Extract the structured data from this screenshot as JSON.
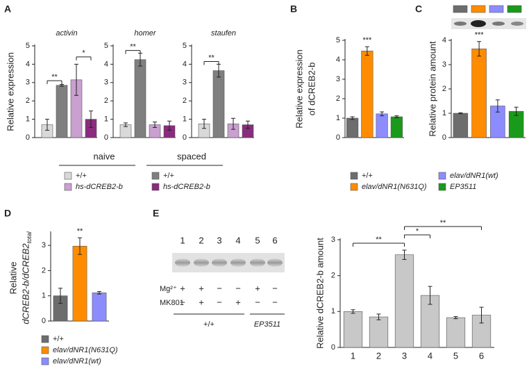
{
  "chart_data": [
    {
      "type": "bar",
      "label": "A",
      "ylabel": "Relative expression",
      "categories": [
        "activin",
        "homer",
        "staufen"
      ],
      "groups": [
        "naive",
        "spaced"
      ],
      "series": [
        {
          "name": "+/+",
          "color": "#d9d9d9",
          "values": [
            0.7,
            0.7,
            0.75
          ],
          "errors": [
            0.3,
            0.1,
            0.25
          ]
        },
        {
          "name": "hs-dCREB2-b",
          "color": "#c9a0d0",
          "values": [
            3.15,
            0.7,
            0.75
          ],
          "errors": [
            0.85,
            0.15,
            0.3
          ]
        },
        {
          "name": "+/+",
          "color": "#7f7f7f",
          "values": [
            2.85,
            4.25,
            3.65
          ],
          "errors": [
            0.05,
            0.35,
            0.35
          ]
        },
        {
          "name": "hs-dCREB2-b",
          "color": "#8a2b7d",
          "values": [
            1.0,
            0.65,
            0.7
          ],
          "errors": [
            0.45,
            0.25,
            0.2
          ]
        }
      ],
      "annotations": [
        "**",
        "*",
        "**",
        "**"
      ],
      "ylim": [
        0,
        5
      ],
      "yticks": [
        0,
        1,
        2,
        3,
        4,
        5
      ]
    },
    {
      "type": "bar",
      "label": "B",
      "ylabel": [
        "Relative expression",
        "of dCREB2-b"
      ],
      "categories": [
        "+/+",
        "elav/dNR1(N631Q)",
        "elav/dNR1(wt)",
        "EP3511"
      ],
      "colors": [
        "#6d6d6d",
        "#ff8c00",
        "#8c8cff",
        "#1a9a1a"
      ],
      "values": [
        1.0,
        4.45,
        1.22,
        1.07
      ],
      "errors": [
        0.07,
        0.22,
        0.1,
        0.05
      ],
      "annotations": [
        "***"
      ],
      "ylim": [
        0,
        5
      ],
      "yticks": [
        0,
        1,
        2,
        3,
        4,
        5
      ]
    },
    {
      "type": "bar",
      "label": "C",
      "ylabel": "Relative protein amount",
      "colors": [
        "#6d6d6d",
        "#ff8c00",
        "#8c8cff",
        "#1a9a1a"
      ],
      "values": [
        1.0,
        3.65,
        1.3,
        1.08
      ],
      "errors": [
        0.02,
        0.3,
        0.25,
        0.17
      ],
      "annotations": [
        "***"
      ],
      "ylim": [
        0,
        4
      ],
      "yticks": [
        0,
        1,
        2,
        3,
        4
      ]
    },
    {
      "type": "bar",
      "label": "D",
      "ylabel": "Relative",
      "ylabel2": "dCREB2-b/dCREB2",
      "ylabel2_sub": "total",
      "categories": [
        "+/+",
        "elav/dNR1(N631Q)",
        "elav/dNR1(wt)"
      ],
      "colors": [
        "#6d6d6d",
        "#ff8c00",
        "#8c8cff"
      ],
      "values": [
        1.0,
        2.97,
        1.12
      ],
      "errors": [
        0.3,
        0.33,
        0.05
      ],
      "annotations": [
        "**"
      ],
      "ylim": [
        0,
        3.5
      ],
      "yticks": [
        0,
        1,
        2,
        3
      ]
    },
    {
      "type": "bar",
      "label": "E",
      "ylabel": "Relative dCREB2-b amount",
      "categories": [
        "1",
        "2",
        "3",
        "4",
        "5",
        "6"
      ],
      "color": "#c8c8c8",
      "values": [
        1.0,
        0.85,
        2.58,
        1.45,
        0.83,
        0.9
      ],
      "errors": [
        0.05,
        0.08,
        0.13,
        0.25,
        0.03,
        0.22
      ],
      "rows": [
        {
          "label": "Mg²⁺",
          "signs": [
            "+",
            "+",
            "−",
            "−",
            "+",
            "−"
          ]
        },
        {
          "label": "MK801",
          "signs": [
            "−",
            "+",
            "−",
            "+",
            "−",
            "−"
          ]
        }
      ],
      "genotypes": [
        "+/+",
        "EP3511"
      ],
      "annotations": [
        "**",
        "*",
        "**"
      ],
      "ylim": [
        0,
        3
      ],
      "yticks": [
        0,
        1,
        2,
        3
      ]
    }
  ]
}
